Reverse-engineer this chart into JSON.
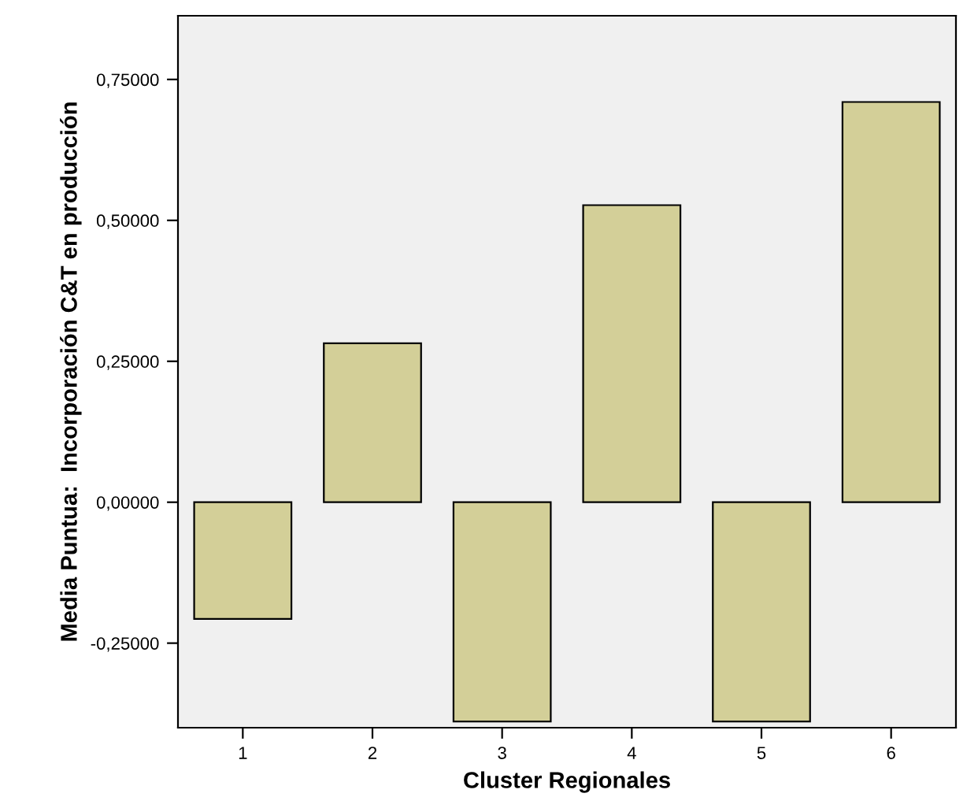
{
  "chart_data": {
    "type": "bar",
    "xlabel": "Cluster Regionales",
    "ylabel": "Media Puntua:  Incorporación C&T en producción",
    "categories": [
      "1",
      "2",
      "3",
      "4",
      "5",
      "6"
    ],
    "values": [
      -0.207,
      0.282,
      -0.389,
      0.527,
      -0.389,
      0.71
    ],
    "color": "#d3cf98",
    "ylim": [
      -0.4,
      0.863
    ],
    "yticks": [
      {
        "value": -0.25,
        "label": "-0,25000"
      },
      {
        "value": 0,
        "label": "0,00000"
      },
      {
        "value": 0.25,
        "label": "0,25000"
      },
      {
        "value": 0.5,
        "label": "0,50000"
      },
      {
        "value": 0.75,
        "label": "0,75000"
      }
    ],
    "grid": false
  }
}
